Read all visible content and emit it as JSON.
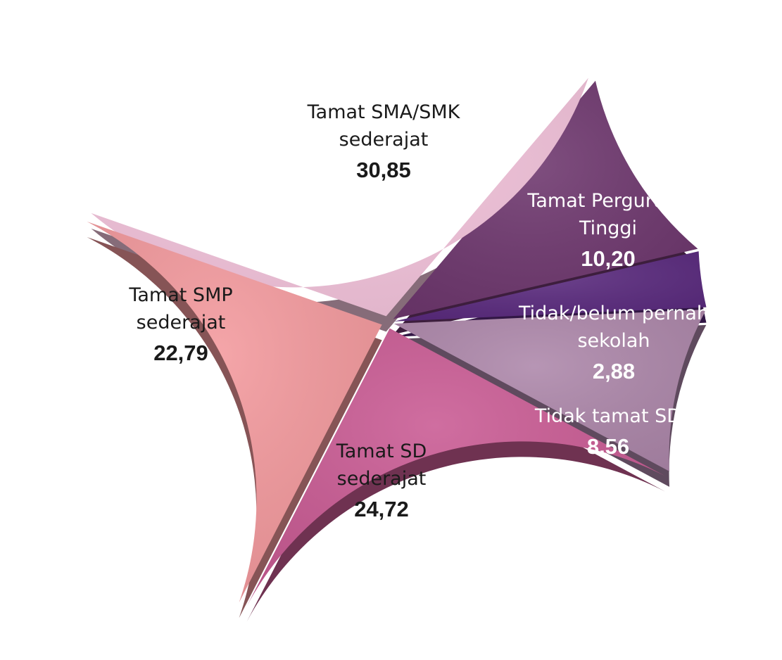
{
  "chart_data": {
    "type": "pie",
    "title": "",
    "slices": [
      {
        "label_lines": [
          "Tidak/belum pernah",
          "sekolah"
        ],
        "value": 2.88,
        "display_value": "2,88",
        "color": "#5a2a7e",
        "text_color": "#ffffff"
      },
      {
        "label_lines": [
          "Tamat Perguruan",
          "Tinggi"
        ],
        "value": 10.2,
        "display_value": "10,20",
        "color": "#6e376e",
        "text_color": "#ffffff"
      },
      {
        "label_lines": [
          "Tamat SMA/SMK",
          "sederajat"
        ],
        "value": 30.85,
        "display_value": "30,85",
        "color": "#f4c4dc",
        "text_color": "#1a1a1a"
      },
      {
        "label_lines": [
          "Tamat SMP",
          "sederajat"
        ],
        "value": 22.79,
        "display_value": "22,79",
        "color": "#f3999d",
        "text_color": "#1a1a1a"
      },
      {
        "label_lines": [
          "Tamat SD",
          "sederajat"
        ],
        "value": 24.72,
        "display_value": "24,72",
        "color": "#c95a93",
        "text_color": "#1a1a1a"
      },
      {
        "label_lines": [
          "Tidak tamat SD"
        ],
        "value": 8.56,
        "display_value": "8,56",
        "color": "#ad87aa",
        "text_color": "#ffffff"
      }
    ]
  }
}
